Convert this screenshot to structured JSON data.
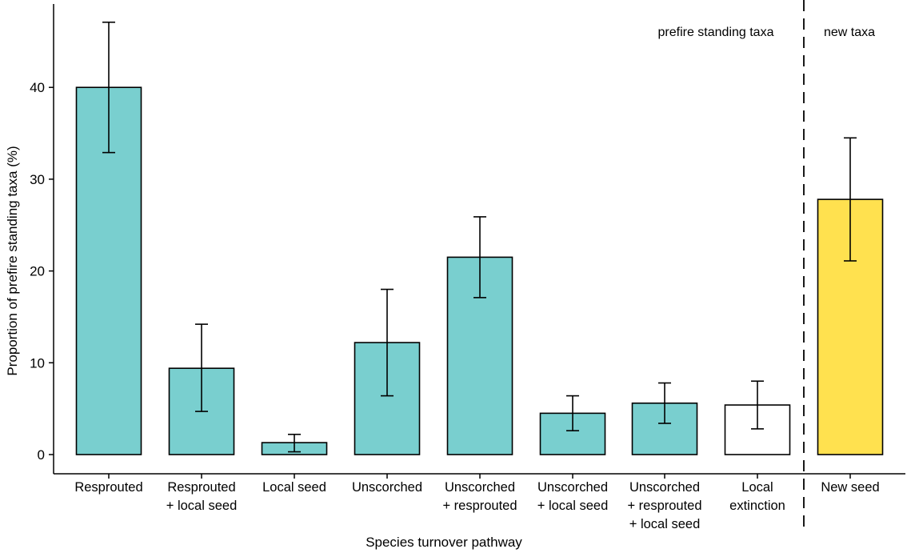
{
  "chart_data": {
    "type": "bar",
    "title": "",
    "xlabel": "Species turnover pathway",
    "ylabel": "Proportion of prefire standing taxa (%)",
    "ylim": [
      0,
      48
    ],
    "yticks": [
      0,
      10,
      20,
      30,
      40
    ],
    "grid": false,
    "categories": [
      [
        "Resprouted"
      ],
      [
        "Resprouted",
        "+ local seed"
      ],
      [
        "Local seed"
      ],
      [
        "Unscorched"
      ],
      [
        "Unscorched",
        "+ resprouted"
      ],
      [
        "Unscorched",
        "+ local seed"
      ],
      [
        "Unscorched",
        "+ resprouted",
        "+ local seed"
      ],
      [
        "Local",
        "extinction"
      ],
      [
        "New seed"
      ]
    ],
    "values": [
      40.0,
      9.4,
      1.3,
      12.2,
      21.5,
      4.5,
      5.6,
      5.4,
      27.8
    ],
    "error_low": [
      32.9,
      4.7,
      0.3,
      6.4,
      17.1,
      2.6,
      3.4,
      2.8,
      21.1
    ],
    "error_high": [
      47.1,
      14.2,
      2.2,
      18.0,
      25.9,
      6.4,
      7.8,
      8.0,
      34.5
    ],
    "bar_colors": [
      "#79cfcf",
      "#79cfcf",
      "#79cfcf",
      "#79cfcf",
      "#79cfcf",
      "#79cfcf",
      "#79cfcf",
      "#ffffff",
      "#ffe14f"
    ],
    "annotations": [
      "prefire standing taxa",
      "new taxa"
    ]
  }
}
